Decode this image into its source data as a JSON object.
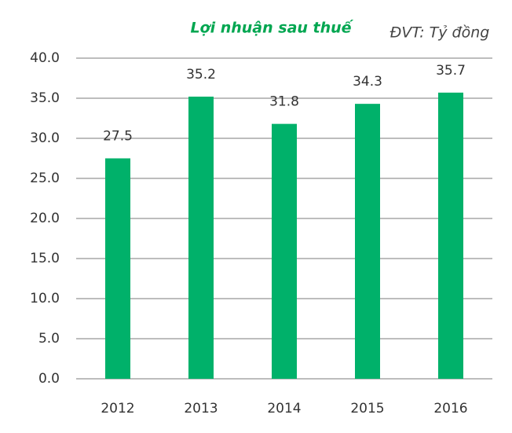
{
  "chart_data": {
    "type": "bar",
    "title": "Lợi nhuận sau thuế",
    "unit_note": "ĐVT: Tỷ đồng",
    "categories": [
      "2012",
      "2013",
      "2014",
      "2015",
      "2016"
    ],
    "values": [
      27.5,
      35.2,
      31.8,
      34.3,
      35.7
    ],
    "color": "#00b16a",
    "ylim": [
      0,
      40
    ],
    "yticks": [
      {
        "value": 0,
        "label": "0.0"
      },
      {
        "value": 5,
        "label": "5.0"
      },
      {
        "value": 10,
        "label": "10.0"
      },
      {
        "value": 15,
        "label": "15.0"
      },
      {
        "value": 20,
        "label": "20.0"
      },
      {
        "value": 25,
        "label": "25.0"
      },
      {
        "value": 30,
        "label": "30.0"
      },
      {
        "value": 35,
        "label": "35.0"
      },
      {
        "value": 40,
        "label": "40.0"
      }
    ],
    "grid": true
  }
}
